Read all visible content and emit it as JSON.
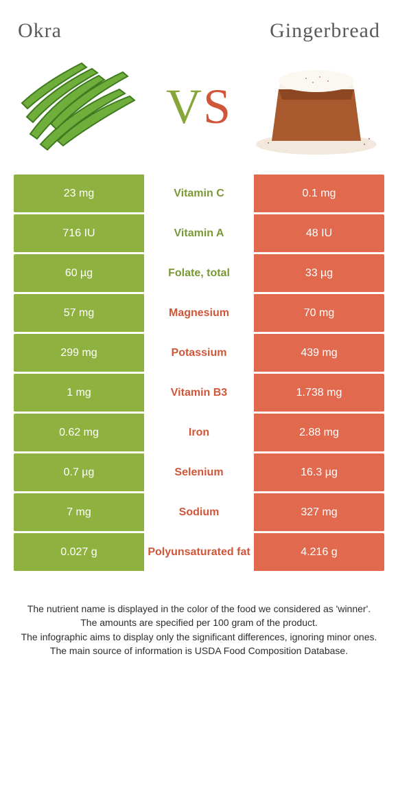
{
  "colors": {
    "left": "#8fb140",
    "right": "#e16a4e",
    "left_text_winner": "#7a9836",
    "right_text_winner": "#d0563a"
  },
  "header": {
    "left_title": "Okra",
    "right_title": "Gingerbread",
    "vs_v": "V",
    "vs_s": "S"
  },
  "rows": [
    {
      "label": "Vitamin C",
      "left": "23 mg",
      "right": "0.1 mg",
      "winner": "left"
    },
    {
      "label": "Vitamin A",
      "left": "716 IU",
      "right": "48 IU",
      "winner": "left"
    },
    {
      "label": "Folate, total",
      "left": "60 µg",
      "right": "33 µg",
      "winner": "left"
    },
    {
      "label": "Magnesium",
      "left": "57 mg",
      "right": "70 mg",
      "winner": "right"
    },
    {
      "label": "Potassium",
      "left": "299 mg",
      "right": "439 mg",
      "winner": "right"
    },
    {
      "label": "Vitamin B3",
      "left": "1 mg",
      "right": "1.738 mg",
      "winner": "right"
    },
    {
      "label": "Iron",
      "left": "0.62 mg",
      "right": "2.88 mg",
      "winner": "right"
    },
    {
      "label": "Selenium",
      "left": "0.7 µg",
      "right": "16.3 µg",
      "winner": "right"
    },
    {
      "label": "Sodium",
      "left": "7 mg",
      "right": "327 mg",
      "winner": "right"
    },
    {
      "label": "Polyunsaturated fat",
      "left": "0.027 g",
      "right": "4.216 g",
      "winner": "right"
    }
  ],
  "footnotes": [
    "The nutrient name is displayed in the color of the food we considered as 'winner'.",
    "The amounts are specified per 100 gram of the product.",
    "The infographic aims to display only the significant differences, ignoring minor ones.",
    "The main source of information is USDA Food Composition Database."
  ]
}
